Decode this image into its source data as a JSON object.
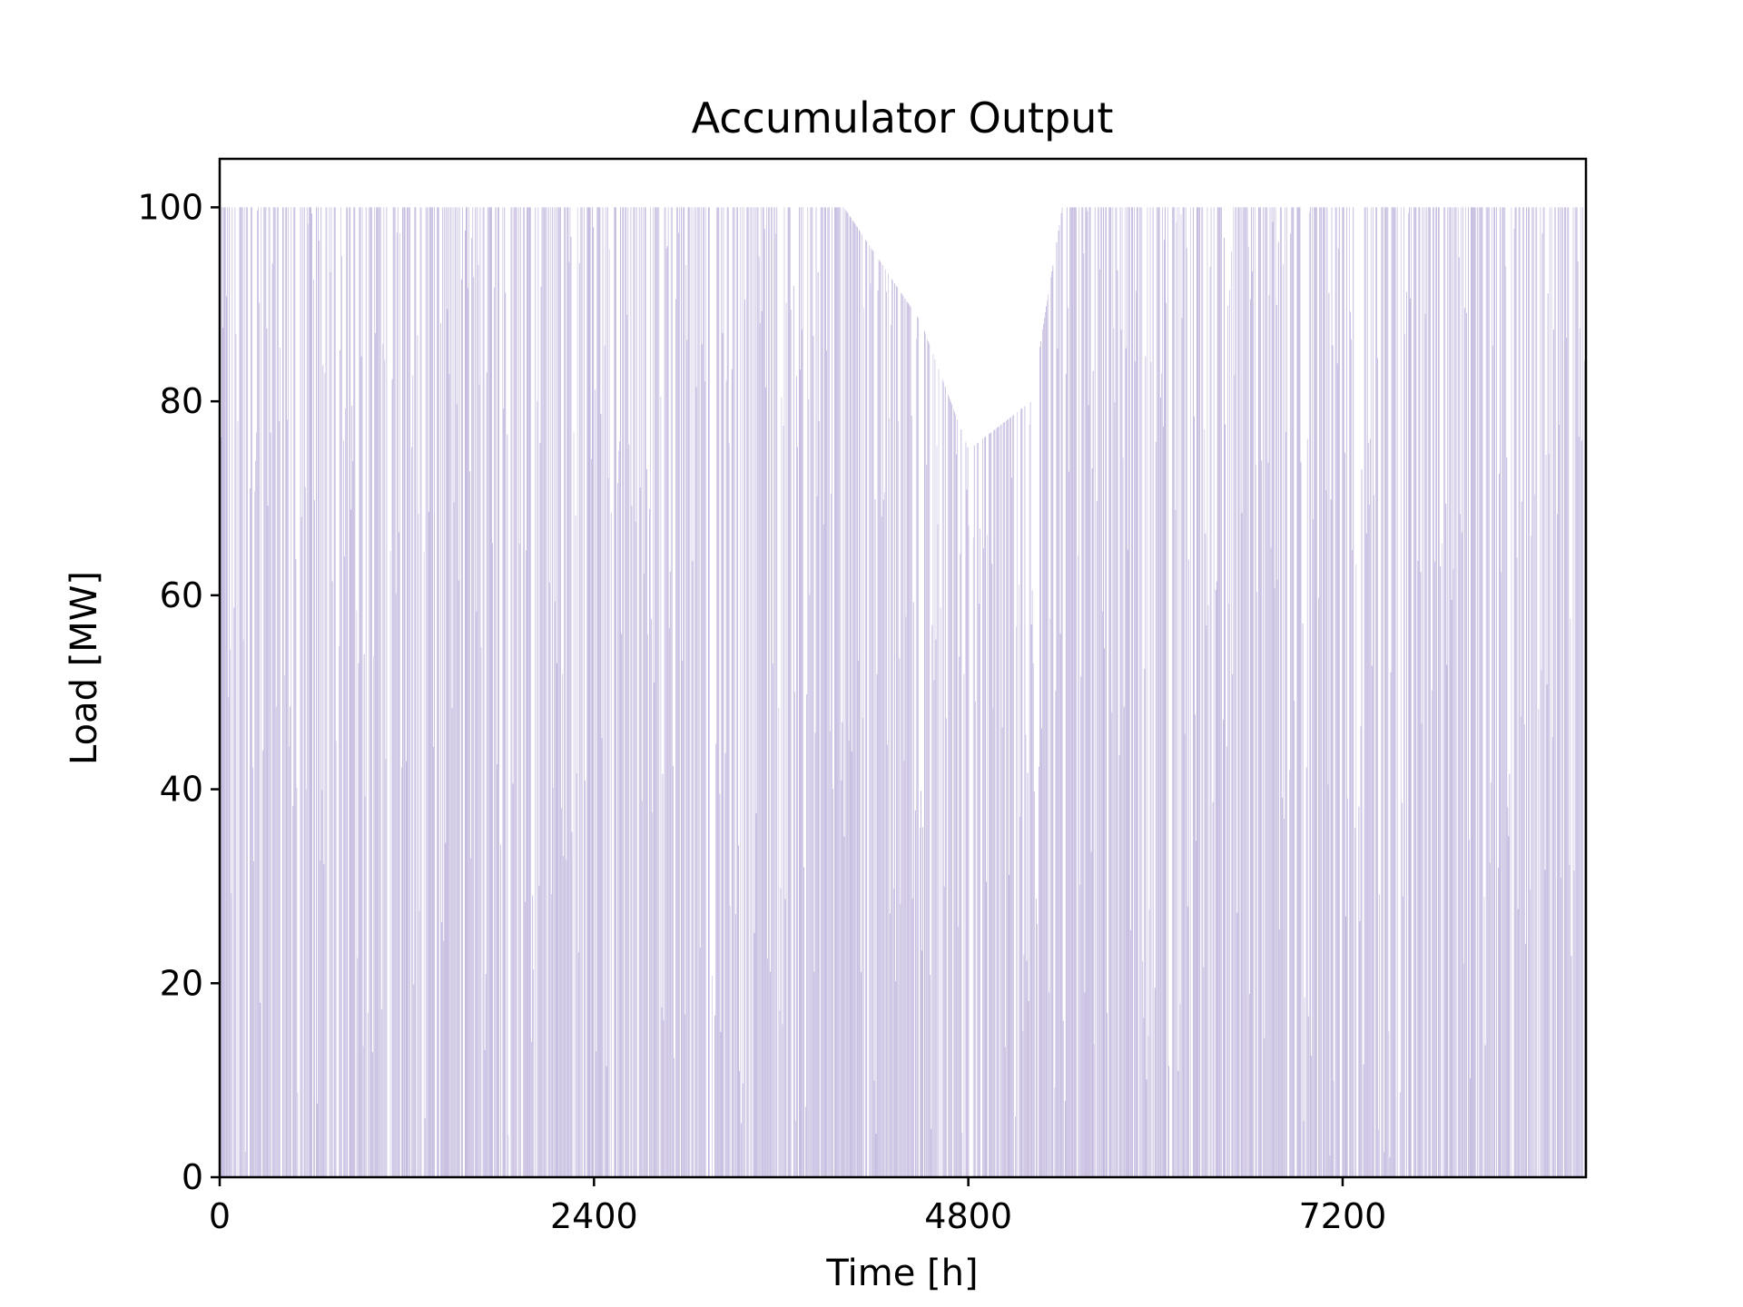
{
  "chart_data": {
    "type": "bar",
    "title": "Accumulator Output",
    "xlabel": "Time [h]",
    "ylabel": "Load [MW]",
    "xlim": [
      0,
      8760
    ],
    "ylim": [
      0,
      105
    ],
    "x_ticks": [
      0,
      2400,
      4800,
      7200
    ],
    "y_ticks": [
      0,
      20,
      40,
      60,
      80,
      100
    ],
    "bar_color": "#b4a7d6",
    "grid": false,
    "legend": "none",
    "series_profile": {
      "x_start": 0,
      "x_end": 8760,
      "max_value": 100,
      "envelope": [
        {
          "x": 0,
          "value": 100
        },
        {
          "x": 4000,
          "value": 100
        },
        {
          "x": 4500,
          "value": 88
        },
        {
          "x": 4800,
          "value": 75
        },
        {
          "x": 5200,
          "value": 80
        },
        {
          "x": 5400,
          "value": 100
        },
        {
          "x": 8760,
          "value": 100
        }
      ]
    }
  }
}
